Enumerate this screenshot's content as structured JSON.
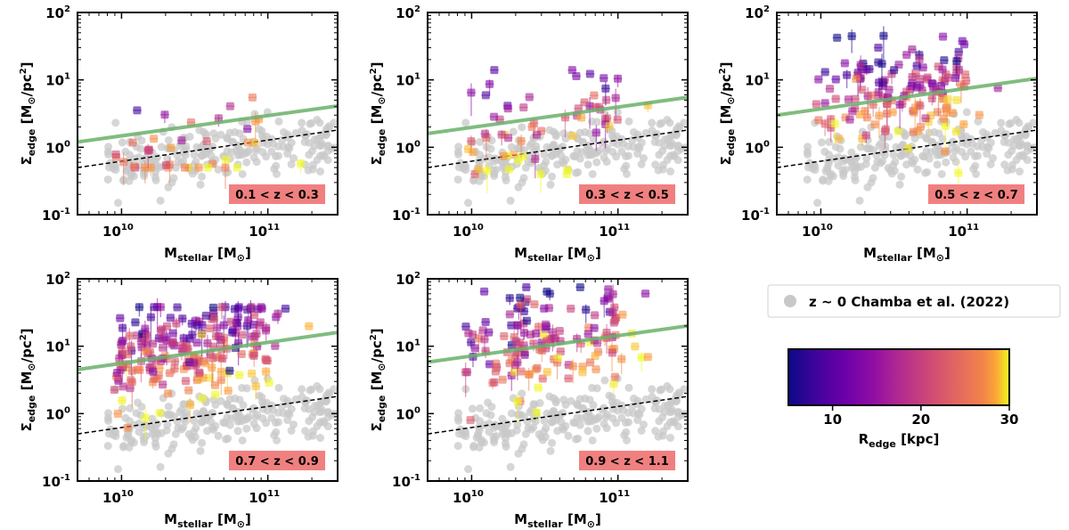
{
  "chart_data": [
    {
      "type": "scatter",
      "panel": "0.1 < z < 0.3",
      "xlabel": "M_stellar [M_sun]",
      "ylabel": "Sigma_edge [M_sun/pc^2]",
      "xscale": "log",
      "yscale": "log",
      "xlim": [
        5000000000.0,
        300000000000.0
      ],
      "ylim": [
        0.1,
        100
      ],
      "xticks": [
        "10^10",
        "10^11"
      ],
      "yticks": [
        "10^-1",
        "10^0",
        "10^1",
        "10^2"
      ],
      "green_fit": {
        "x": [
          5000000000.0,
          300000000000.0
        ],
        "y": [
          1.2,
          4.1
        ]
      },
      "dashed_line": {
        "x": [
          5000000000.0,
          300000000000.0
        ],
        "y": [
          0.5,
          1.8
        ]
      },
      "n_points": 38,
      "colored_points_sigma_range": [
        0.5,
        10
      ],
      "color_by": "R_edge [kpc]"
    },
    {
      "type": "scatter",
      "panel": "0.3 < z < 0.5",
      "xlabel": "M_stellar [M_sun]",
      "ylabel": "Sigma_edge [M_sun/pc^2]",
      "xscale": "log",
      "yscale": "log",
      "xlim": [
        5000000000.0,
        300000000000.0
      ],
      "ylim": [
        0.1,
        100
      ],
      "green_fit": {
        "x": [
          5000000000.0,
          300000000000.0
        ],
        "y": [
          1.6,
          5.5
        ]
      },
      "dashed_line": {
        "x": [
          5000000000.0,
          300000000000.0
        ],
        "y": [
          0.5,
          1.8
        ]
      },
      "n_points": 62,
      "colored_points_sigma_range": [
        0.4,
        14
      ],
      "color_by": "R_edge [kpc]"
    },
    {
      "type": "scatter",
      "panel": "0.5 < z < 0.7",
      "xlabel": "M_stellar [M_sun]",
      "ylabel": "Sigma_edge [M_sun/pc^2]",
      "xscale": "log",
      "yscale": "log",
      "xlim": [
        5000000000.0,
        300000000000.0
      ],
      "ylim": [
        0.1,
        100
      ],
      "green_fit": {
        "x": [
          5000000000.0,
          300000000000.0
        ],
        "y": [
          3.0,
          10.5
        ]
      },
      "dashed_line": {
        "x": [
          5000000000.0,
          300000000000.0
        ],
        "y": [
          0.5,
          1.8
        ]
      },
      "n_points": 150,
      "colored_points_sigma_range": [
        0.25,
        45
      ],
      "color_by": "R_edge [kpc]"
    },
    {
      "type": "scatter",
      "panel": "0.7 < z < 0.9",
      "xlabel": "M_stellar [M_sun]",
      "ylabel": "Sigma_edge [M_sun/pc^2]",
      "xscale": "log",
      "yscale": "log",
      "xlim": [
        5000000000.0,
        300000000000.0
      ],
      "ylim": [
        0.1,
        100
      ],
      "green_fit": {
        "x": [
          5000000000.0,
          300000000000.0
        ],
        "y": [
          4.5,
          16
        ]
      },
      "dashed_line": {
        "x": [
          5000000000.0,
          300000000000.0
        ],
        "y": [
          0.5,
          1.8
        ]
      },
      "n_points": 220,
      "colored_points_sigma_range": [
        0.4,
        38
      ],
      "color_by": "R_edge [kpc]"
    },
    {
      "type": "scatter",
      "panel": "0.9 < z < 1.1",
      "xlabel": "M_stellar [M_sun]",
      "ylabel": "Sigma_edge [M_sun/pc^2]",
      "xscale": "log",
      "yscale": "log",
      "xlim": [
        5000000000.0,
        300000000000.0
      ],
      "ylim": [
        0.1,
        100
      ],
      "green_fit": {
        "x": [
          5000000000.0,
          300000000000.0
        ],
        "y": [
          5.8,
          20
        ]
      },
      "dashed_line": {
        "x": [
          5000000000.0,
          300000000000.0
        ],
        "y": [
          0.5,
          1.8
        ]
      },
      "n_points": 150,
      "colored_points_sigma_range": [
        0.8,
        75
      ],
      "color_by": "R_edge [kpc]"
    }
  ],
  "reference_sample": {
    "legend": "z ~ 0 Chamba et al. (2022)",
    "color": "#c8c8c8",
    "xlim": [
      8000000000.0,
      300000000000.0
    ],
    "ylim": [
      0.15,
      5
    ]
  },
  "colorbar": {
    "label": "R_edge [kpc]",
    "min": 5,
    "max": 30,
    "ticks": [
      "10",
      "20",
      "30"
    ],
    "cmap": "plasma"
  },
  "colors": {
    "green_line": "#6ab06a",
    "zbox_fill": "#f08080",
    "gray_points": "#c8c8c8"
  }
}
